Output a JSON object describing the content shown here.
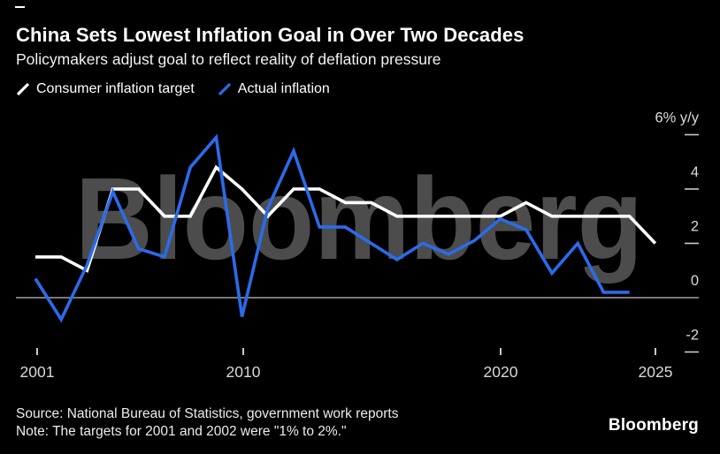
{
  "chart_data": {
    "type": "line",
    "title": "China Sets Lowest Inflation Goal in Over Two Decades",
    "subtitle": "Policymakers adjust goal to reflect reality of deflation pressure",
    "watermark": "Bloomberg",
    "legend_position": "top-left",
    "grid": false,
    "x": [
      2001,
      2002,
      2003,
      2004,
      2005,
      2006,
      2007,
      2008,
      2009,
      2010,
      2011,
      2012,
      2013,
      2014,
      2015,
      2016,
      2017,
      2018,
      2019,
      2020,
      2021,
      2022,
      2023,
      2024,
      2025
    ],
    "series": [
      {
        "name": "Consumer inflation target",
        "color": "#FFFFFF",
        "values": [
          1.5,
          1.5,
          1,
          4,
          4,
          3,
          3,
          4.8,
          4,
          3,
          4,
          4,
          3.5,
          3.5,
          3,
          3,
          3,
          3,
          3,
          3.5,
          3,
          3,
          3,
          3,
          2
        ]
      },
      {
        "name": "Actual inflation",
        "color": "#2B6BEA",
        "values": [
          0.7,
          -0.8,
          1.2,
          3.9,
          1.8,
          1.5,
          4.8,
          5.9,
          -0.7,
          3.3,
          5.4,
          2.6,
          2.6,
          2.0,
          1.4,
          2.0,
          1.6,
          2.1,
          2.9,
          2.5,
          0.9,
          2.0,
          0.2,
          0.2,
          null
        ]
      }
    ],
    "ylim": [
      -2.7,
      6.8
    ],
    "y_ticks": [
      {
        "value": 6,
        "label": "6% y/y"
      },
      {
        "value": 4,
        "label": "4"
      },
      {
        "value": 2,
        "label": "2"
      },
      {
        "value": 0,
        "label": "0"
      },
      {
        "value": -2,
        "label": "-2"
      }
    ],
    "x_ticks": [
      {
        "value": 2001,
        "label": "2001"
      },
      {
        "value": 2010,
        "label": "2010"
      },
      {
        "value": 2020,
        "label": "2020"
      },
      {
        "value": 2025,
        "label": "2025"
      }
    ]
  },
  "colors": {
    "background": "#000000",
    "zero_line": "#A3A3A3",
    "tick": "#C9C9C9",
    "axis_label": "#D9D9D9",
    "watermark": "#4C4C4C"
  },
  "footer": {
    "source": "Source: National Bureau of Statistics, government work reports",
    "note": "Note: The targets for 2001 and 2002 were \"1% to 2%.\"",
    "logo": "Bloomberg"
  }
}
